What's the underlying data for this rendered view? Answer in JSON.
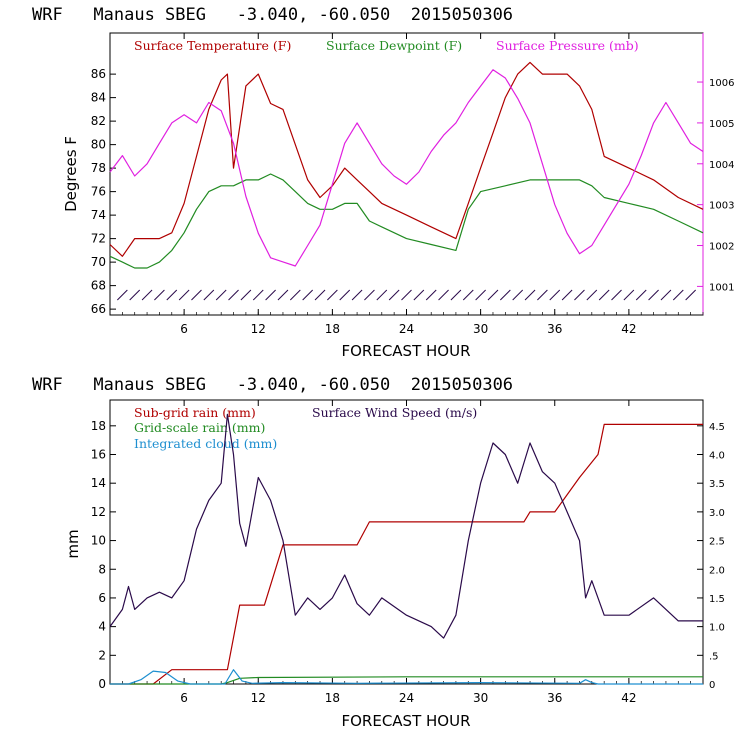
{
  "charts": [
    {
      "title": "WRF   Manaus SBEG   -3.040, -60.050  2015050306",
      "xlabel": "FORECAST HOUR",
      "ylabel": "Degrees F",
      "x_ticks": [
        "6",
        "12",
        "18",
        "24",
        "30",
        "36",
        "42"
      ],
      "y_ticks": [
        "66",
        "68",
        "70",
        "72",
        "74",
        "76",
        "78",
        "80",
        "82",
        "84",
        "86"
      ],
      "y2_ticks": [
        "1001",
        "1002",
        "1003",
        "1004",
        "1005",
        "1006"
      ],
      "legend": [
        {
          "label": "Surface Temperature (F)",
          "color": "#b00000"
        },
        {
          "label": "Surface Dewpoint (F)",
          "color": "#228b22"
        },
        {
          "label": "Surface Pressure (mb)",
          "color": "#e020e0"
        }
      ]
    },
    {
      "title": "WRF   Manaus SBEG   -3.040, -60.050  2015050306",
      "xlabel": "FORECAST HOUR",
      "ylabel": "mm",
      "x_ticks": [
        "6",
        "12",
        "18",
        "24",
        "30",
        "36",
        "42"
      ],
      "y_ticks": [
        "0",
        "2",
        "4",
        "6",
        "8",
        "10",
        "12",
        "14",
        "16",
        "18"
      ],
      "y2_ticks": [
        "0",
        ".5",
        "1.0",
        "1.5",
        "2.0",
        "2.5",
        "3.0",
        "3.5",
        "4.0",
        "4.5"
      ],
      "legend": [
        {
          "label": "Sub-grid rain (mm)",
          "color": "#b00000"
        },
        {
          "label": "Surface Wind Speed (m/s)",
          "color": "#2a0a4a"
        },
        {
          "label": "Grid-scale rain (mm)",
          "color": "#228b22"
        },
        {
          "label": "Integrated cloud (mm)",
          "color": "#1e8fd0"
        }
      ]
    }
  ],
  "chart_data": [
    {
      "type": "line",
      "xlim": [
        0,
        48
      ],
      "ylim": [
        65.5,
        89.5
      ],
      "y2lim": [
        1000.3,
        1007.2
      ],
      "x_ticks": [
        6,
        12,
        18,
        24,
        30,
        36,
        42
      ],
      "y_ticks": [
        66,
        68,
        70,
        72,
        74,
        76,
        78,
        80,
        82,
        84,
        86
      ],
      "y2_ticks": [
        1001,
        1002,
        1003,
        1004,
        1005,
        1006
      ],
      "series": [
        {
          "name": "Surface Temperature (F)",
          "axis": "left",
          "color": "#b00000",
          "x": [
            0,
            1,
            2,
            3,
            4,
            5,
            6,
            7,
            8,
            9,
            9.5,
            10,
            11,
            12,
            13,
            14,
            15,
            16,
            17,
            18,
            19,
            20,
            21,
            22,
            24,
            26,
            28,
            29,
            30,
            31,
            32,
            33,
            34,
            35,
            36,
            37,
            38,
            39,
            40,
            42,
            44,
            46,
            48
          ],
          "y": [
            71.5,
            70.5,
            72,
            72,
            72,
            72.5,
            75,
            79,
            83,
            85.5,
            86,
            78,
            85,
            86,
            83.5,
            83,
            80,
            77,
            75.5,
            76.5,
            78,
            77,
            76,
            75,
            74,
            73,
            72,
            75,
            78,
            81,
            84,
            86,
            87,
            86,
            86,
            86,
            85,
            83,
            79,
            78,
            77,
            75.5,
            74.5
          ]
        },
        {
          "name": "Surface Dewpoint (F)",
          "axis": "left",
          "color": "#228b22",
          "x": [
            0,
            1,
            2,
            3,
            4,
            5,
            6,
            7,
            8,
            9,
            10,
            11,
            12,
            13,
            14,
            15,
            16,
            17,
            18,
            19,
            20,
            21,
            22,
            24,
            26,
            28,
            29,
            30,
            32,
            34,
            36,
            38,
            39,
            40,
            42,
            44,
            46,
            48
          ],
          "y": [
            70.5,
            70,
            69.5,
            69.5,
            70,
            71,
            72.5,
            74.5,
            76,
            76.5,
            76.5,
            77,
            77,
            77.5,
            77,
            76,
            75,
            74.5,
            74.5,
            75,
            75,
            73.5,
            73,
            72,
            71.5,
            71,
            74.5,
            76,
            76.5,
            77,
            77,
            77,
            76.5,
            75.5,
            75,
            74.5,
            73.5,
            72.5
          ]
        },
        {
          "name": "Surface Pressure (mb)",
          "axis": "right",
          "color": "#e020e0",
          "x": [
            0,
            1,
            2,
            3,
            4,
            5,
            6,
            7,
            8,
            9,
            10,
            11,
            12,
            13,
            14,
            15,
            16,
            17,
            18,
            19,
            20,
            21,
            22,
            23,
            24,
            25,
            26,
            27,
            28,
            29,
            30,
            31,
            32,
            33,
            34,
            35,
            36,
            37,
            38,
            39,
            40,
            41,
            42,
            43,
            44,
            45,
            46,
            47,
            48
          ],
          "y": [
            1003.8,
            1004.2,
            1003.7,
            1004.0,
            1004.5,
            1005.0,
            1005.2,
            1005.0,
            1005.5,
            1005.3,
            1004.5,
            1003.2,
            1002.3,
            1001.7,
            1001.6,
            1001.5,
            1002.0,
            1002.5,
            1003.5,
            1004.5,
            1005.0,
            1004.5,
            1004.0,
            1003.7,
            1003.5,
            1003.8,
            1004.3,
            1004.7,
            1005.0,
            1005.5,
            1005.9,
            1006.3,
            1006.1,
            1005.6,
            1005.0,
            1004.0,
            1003.0,
            1002.3,
            1001.8,
            1002.0,
            1002.5,
            1003.0,
            1003.5,
            1004.2,
            1005.0,
            1005.5,
            1005.0,
            1004.5,
            1004.3
          ]
        },
        {
          "name": "Surface Wind",
          "axis": "left",
          "color": "#2a0a4a",
          "type": "wind-barbs",
          "x": [
            1,
            2,
            3,
            4,
            5,
            6,
            7,
            8,
            9,
            10,
            11,
            12,
            13,
            14,
            15,
            16,
            17,
            18,
            19,
            20,
            21,
            22,
            23,
            24,
            25,
            26,
            27,
            28,
            29,
            30,
            31,
            32,
            33,
            34,
            35,
            36,
            37,
            38,
            39,
            40,
            41,
            42,
            43,
            44,
            45,
            46,
            47
          ],
          "y": [
            67.2,
            67.2,
            67.2,
            67.2,
            67.2,
            67.2,
            67.2,
            67.2,
            67.2,
            67.2,
            67.2,
            67.2,
            67.2,
            67.2,
            67.2,
            67.2,
            67.2,
            67.2,
            67.2,
            67.2,
            67.2,
            67.2,
            67.2,
            67.2,
            67.2,
            67.2,
            67.2,
            67.2,
            67.2,
            67.2,
            67.2,
            67.2,
            67.2,
            67.2,
            67.2,
            67.2,
            67.2,
            67.2,
            67.2,
            67.2,
            67.2,
            67.2,
            67.2,
            67.2,
            67.2,
            67.2,
            67.2
          ]
        }
      ]
    },
    {
      "type": "line",
      "xlim": [
        0,
        48
      ],
      "ylim": [
        0,
        19.8
      ],
      "y2lim": [
        0,
        4.95
      ],
      "x_ticks": [
        6,
        12,
        18,
        24,
        30,
        36,
        42
      ],
      "y_ticks": [
        0,
        2,
        4,
        6,
        8,
        10,
        12,
        14,
        16,
        18
      ],
      "y2_ticks": [
        0,
        0.5,
        1.0,
        1.5,
        2.0,
        2.5,
        3.0,
        3.5,
        4.0,
        4.5
      ],
      "series": [
        {
          "name": "Sub-grid rain (mm)",
          "axis": "left",
          "color": "#b00000",
          "x": [
            0,
            3.5,
            5,
            9.5,
            10.5,
            12.5,
            14,
            20,
            21,
            33.5,
            34,
            36,
            38,
            39.5,
            40,
            48
          ],
          "y": [
            0,
            0,
            1.0,
            1.0,
            5.5,
            5.5,
            9.7,
            9.7,
            11.3,
            11.3,
            12.0,
            12.0,
            14.4,
            16.0,
            18.1,
            18.1
          ]
        },
        {
          "name": "Surface Wind Speed (m/s)",
          "axis": "right",
          "color": "#2a0a4a",
          "x": [
            0,
            1,
            1.5,
            2,
            3,
            4,
            5,
            6,
            7,
            8,
            9,
            9.5,
            10,
            10.5,
            11,
            12,
            13,
            14,
            15,
            16,
            17,
            18,
            19,
            20,
            21,
            22,
            24,
            26,
            27,
            28,
            29,
            30,
            31,
            32,
            33,
            34,
            35,
            36,
            37,
            38,
            38.5,
            39,
            40,
            42,
            44,
            46,
            48
          ],
          "y": [
            1.0,
            1.3,
            1.7,
            1.3,
            1.5,
            1.6,
            1.5,
            1.8,
            2.7,
            3.2,
            3.5,
            4.7,
            4.0,
            2.8,
            2.4,
            3.6,
            3.2,
            2.5,
            1.2,
            1.5,
            1.3,
            1.5,
            1.9,
            1.4,
            1.2,
            1.5,
            1.2,
            1.0,
            0.8,
            1.2,
            2.5,
            3.5,
            4.2,
            4.0,
            3.5,
            4.2,
            3.7,
            3.5,
            3.0,
            2.5,
            1.5,
            1.8,
            1.2,
            1.2,
            1.5,
            1.1,
            1.1
          ]
        },
        {
          "name": "Grid-scale rain (mm)",
          "axis": "left",
          "color": "#228b22",
          "x": [
            0,
            9,
            9.5,
            10.5,
            12,
            24,
            36,
            48
          ],
          "y": [
            0,
            0,
            0.1,
            0.4,
            0.45,
            0.5,
            0.5,
            0.5
          ]
        },
        {
          "name": "Integrated cloud (mm)",
          "axis": "left",
          "color": "#1e8fd0",
          "x": [
            0,
            1.5,
            2.5,
            3.5,
            4.5,
            5.5,
            6.5,
            9.3,
            10,
            10.7,
            11.5,
            14,
            20,
            30,
            38,
            38.5,
            39,
            39.5,
            40,
            48
          ],
          "y": [
            0,
            0,
            0.3,
            0.9,
            0.8,
            0.2,
            0,
            0,
            1.0,
            0.2,
            0.05,
            0.1,
            0.05,
            0.1,
            0.05,
            0.3,
            0.1,
            0,
            0,
            0
          ]
        }
      ]
    }
  ]
}
